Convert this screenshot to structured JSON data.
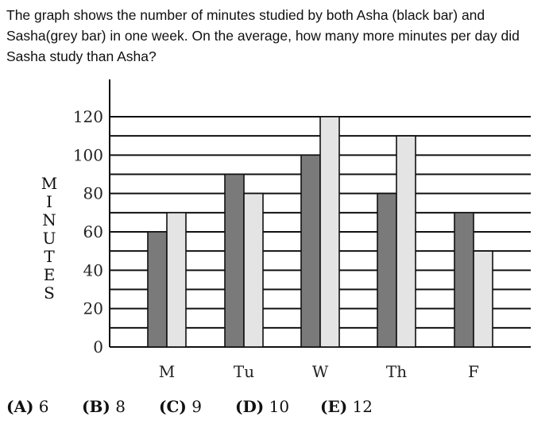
{
  "question": {
    "line1": "The graph shows the number of minutes studied by both Asha (black bar) and",
    "line2": "Sasha(grey bar) in one week. On the average, how many more minutes per day did",
    "line3": "Sasha study than Asha?"
  },
  "chart_data": {
    "type": "bar",
    "categories": [
      "M",
      "Tu",
      "W",
      "Th",
      "F"
    ],
    "series": [
      {
        "values": [
          60,
          90,
          100,
          80,
          70
        ],
        "color": "#7a7a7a"
      },
      {
        "values": [
          70,
          80,
          120,
          110,
          50
        ],
        "color": "#e4e4e4"
      }
    ],
    "ylabel": "MINUTES",
    "ylabel_letters": [
      "M",
      "I",
      "N",
      "U",
      "T",
      "E",
      "S"
    ],
    "ylim": [
      0,
      120
    ],
    "yticks": [
      "0",
      "20",
      "40",
      "60",
      "80",
      "100",
      "120"
    ],
    "gridlines": [
      10,
      20,
      30,
      40,
      50,
      60,
      70,
      80,
      90,
      100,
      110,
      120
    ],
    "grid": true
  },
  "choices": [
    {
      "letter": "(A)",
      "value": "6"
    },
    {
      "letter": "(B)",
      "value": "8"
    },
    {
      "letter": "(C)",
      "value": "9"
    },
    {
      "letter": "(D)",
      "value": "10"
    },
    {
      "letter": "(E)",
      "value": "12"
    }
  ]
}
